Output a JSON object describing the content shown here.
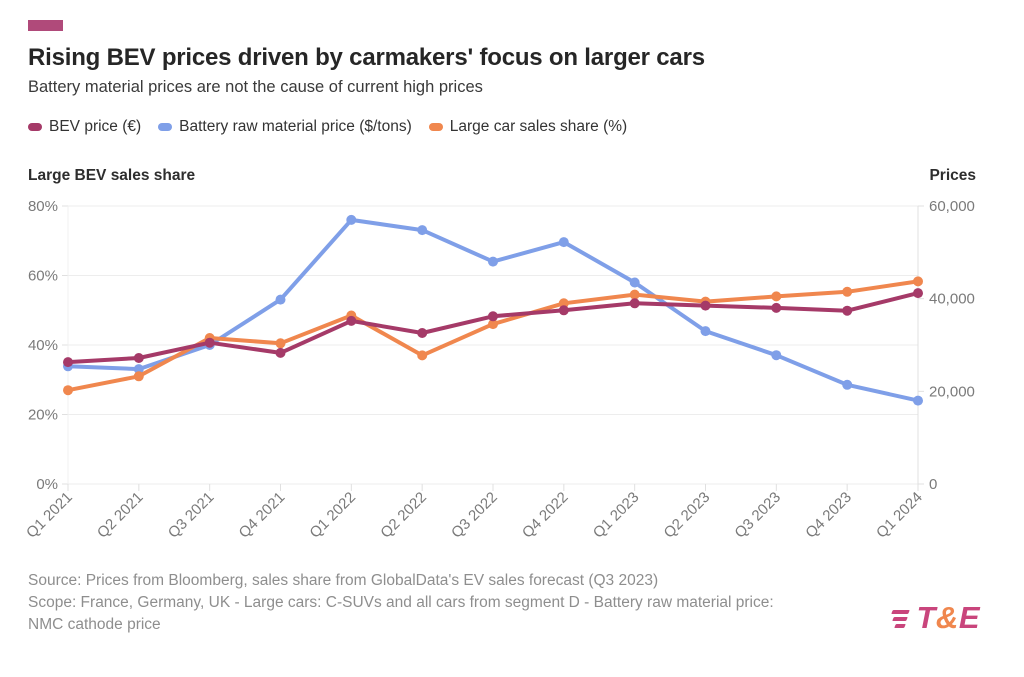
{
  "accent_color": "#b04a7a",
  "header": {
    "title": "Rising BEV prices driven by carmakers' focus on larger cars",
    "subtitle": "Battery material prices are not the cause of current high prices"
  },
  "legend": {
    "items": [
      {
        "label": "BEV price (€)",
        "color": "#a53a68"
      },
      {
        "label": "Battery raw material price ($/tons)",
        "color": "#7f9fe8"
      },
      {
        "label": "Large car sales share (%)",
        "color": "#f0874e"
      }
    ]
  },
  "axes": {
    "left_title": "Large BEV sales share",
    "right_title": "Prices",
    "left_ticks": [
      "80%",
      "60%",
      "40%",
      "20%",
      "0%"
    ],
    "right_ticks": [
      "60,000",
      "40,000",
      "20,000",
      "0"
    ]
  },
  "chart_data": {
    "type": "line",
    "categories": [
      "Q1 2021",
      "Q2 2021",
      "Q3 2021",
      "Q4 2021",
      "Q1 2022",
      "Q2 2022",
      "Q3 2022",
      "Q4 2022",
      "Q1 2023",
      "Q2 2023",
      "Q3 2023",
      "Q4 2023",
      "Q1 2024"
    ],
    "series": [
      {
        "name": "BEV price (€)",
        "color": "#a53a68",
        "axis": "right",
        "unit": "EUR",
        "values": [
          26300,
          27200,
          30500,
          28300,
          35200,
          32600,
          36200,
          37500,
          39000,
          38500,
          38000,
          37400,
          41200
        ]
      },
      {
        "name": "Battery raw material price ($/tons)",
        "color": "#7f9fe8",
        "axis": "right",
        "unit": "USD/ton",
        "values": [
          25400,
          24800,
          30000,
          39800,
          57000,
          54800,
          48000,
          52200,
          43500,
          33000,
          27800,
          21400,
          18000
        ]
      },
      {
        "name": "Large car sales share (%)",
        "color": "#f0874e",
        "axis": "left",
        "unit": "%",
        "values": [
          27,
          31,
          42,
          40.5,
          48.5,
          37,
          46,
          52,
          54.5,
          52.5,
          54,
          55.3,
          58.3
        ]
      }
    ],
    "left_axis_range": [
      0,
      80
    ],
    "right_axis_range": [
      0,
      60000
    ],
    "grid": "horizontal",
    "legend_position": "top"
  },
  "footer": {
    "source_lines": [
      "Source: Prices from Bloomberg, sales share from GlobalData's EV sales forecast (Q3 2023)",
      "Scope: France, Germany, UK - Large cars: C-SUVs and all cars from segment D - Battery raw material price:",
      "NMC cathode price"
    ],
    "logo": {
      "text_t": "T",
      "text_amp": "&",
      "text_e": "E",
      "magenta": "#c9457c",
      "orange": "#f0874e"
    }
  }
}
